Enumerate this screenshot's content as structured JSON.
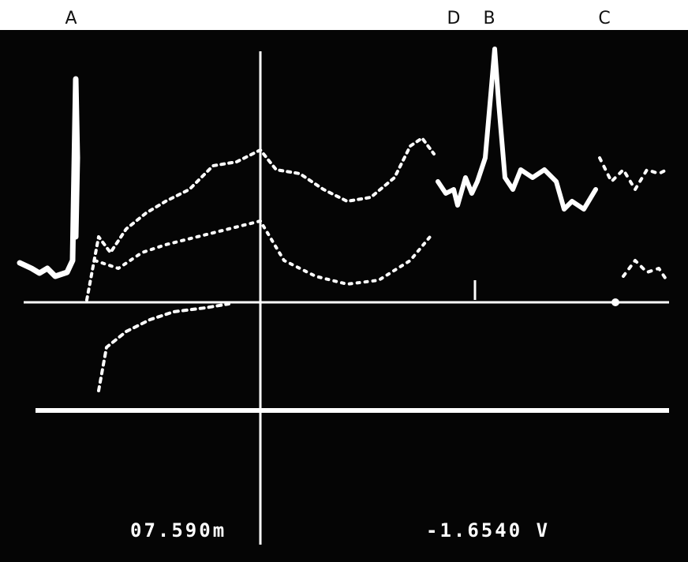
{
  "labels": [
    "A",
    "D",
    "B",
    "C"
  ],
  "readouts": {
    "left": "07.590m",
    "right": "-1.6540 V"
  }
}
